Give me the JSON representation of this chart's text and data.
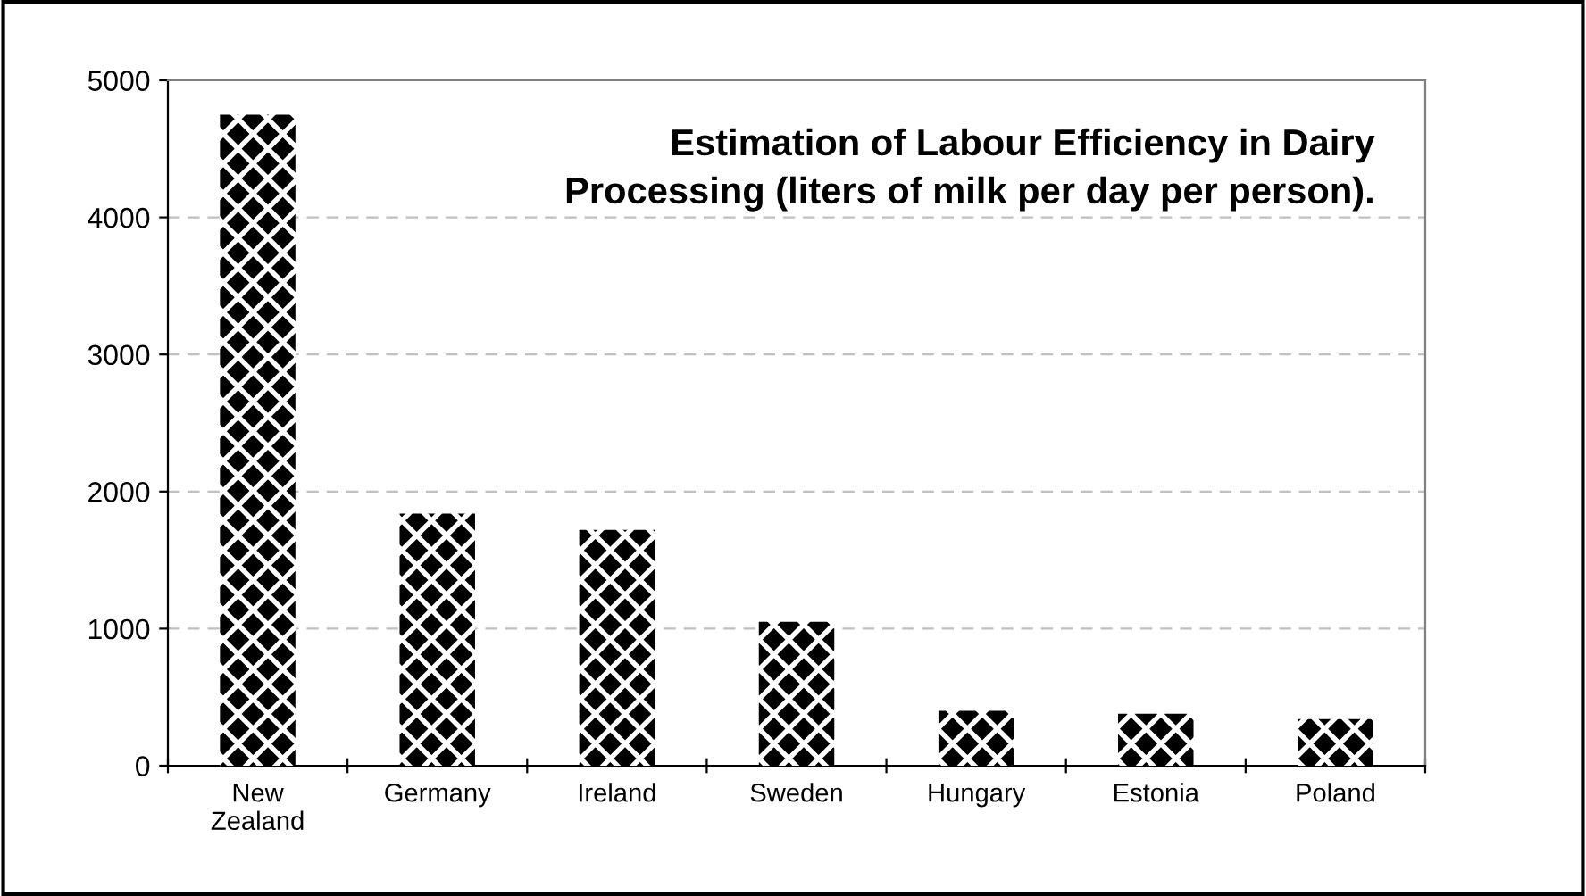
{
  "chart_data": {
    "type": "bar",
    "title": "Estimation of Labour Efficiency in Dairy Processing (liters of milk per day per person).",
    "categories": [
      "New Zealand",
      "Germany",
      "Ireland",
      "Sweden",
      "Hungary",
      "Estonia",
      "Poland"
    ],
    "values": [
      4750,
      1840,
      1720,
      1050,
      400,
      380,
      340
    ],
    "color": "#000000",
    "ylim": [
      0,
      5000
    ],
    "yticks": [
      0,
      1000,
      2000,
      3000,
      4000,
      5000
    ],
    "grid": "y",
    "legend": false
  }
}
